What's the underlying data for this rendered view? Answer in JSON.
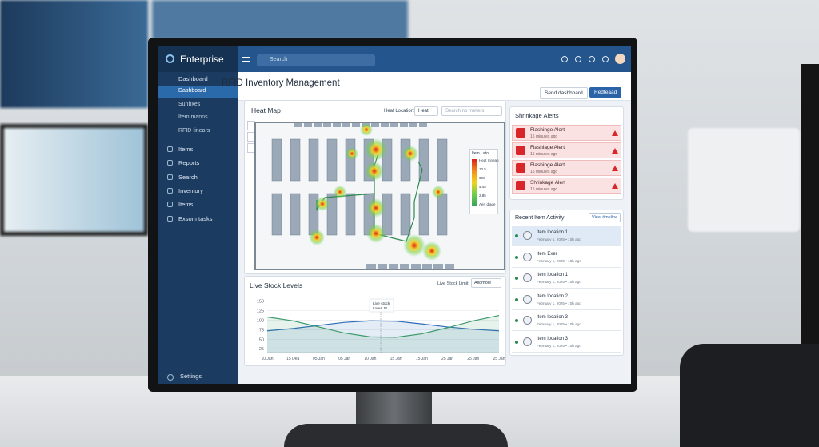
{
  "sidebar": {
    "brand": "Enterprise",
    "nav_main": "Dashboard",
    "nav_sub": [
      "Dashboard",
      "Sunbxes",
      "Item manns",
      "RFID Iinears"
    ],
    "nav": [
      "Items",
      "Reports",
      "Search",
      "Inventory",
      "Items",
      "Exsom tasks"
    ],
    "settings": "Settings"
  },
  "topbar": {
    "search": "Search"
  },
  "header": {
    "title": "RFID Inventory Management",
    "buttons": [
      "Send dashboard",
      "Redfeaad"
    ]
  },
  "heat_map": {
    "title": "Heat Map",
    "location_label": "Heat Location:",
    "location_value": "Heat",
    "search": "Search no mellers",
    "legend": {
      "title": "Item Lato",
      "labels": [
        "Heat mnean",
        "10.5",
        "60S",
        "4.45",
        "2.85",
        "Aert diage"
      ]
    }
  },
  "stock_chart": {
    "type": "line",
    "title": "Live Stock Levels",
    "limit_label": "Live Stock Limit",
    "limit_value": "Allomole",
    "categories": [
      "10 Jan",
      "15 Dea",
      "05 Jan",
      "05 Jan",
      "10 Jan",
      "15 Jan",
      "15 Jan",
      "25 Jan",
      "25 Jan",
      "25 Jan"
    ],
    "series": [
      {
        "color": "#2f6fb5",
        "values": [
          72,
          78,
          86,
          94,
          98,
          97,
          90,
          82,
          76,
          72
        ]
      },
      {
        "color": "#3a9a6a",
        "values": [
          108,
          98,
          82,
          66,
          56,
          55,
          64,
          80,
          98,
          112
        ]
      }
    ],
    "ylim": [
      15,
      155
    ],
    "yticks": [
      25,
      50,
      75,
      100,
      125,
      150
    ],
    "grid": true,
    "tooltip": {
      "title": "Live stock",
      "text": "Lorer: 5t"
    }
  },
  "shrinkage_alerts": {
    "title": "Shrinkage Alerts",
    "items": [
      {
        "title": "Flashinge Alert",
        "time": "15 minutes ago"
      },
      {
        "title": "Flashlage Alert",
        "time": "15 minutes ago"
      },
      {
        "title": "Flashinge Alert",
        "time": "15 minutes ago"
      },
      {
        "title": "Shrinkage Alert",
        "time": "15 minutes ago"
      }
    ]
  },
  "recent_activity": {
    "title": "Recent Item Activity",
    "button": "View timeline",
    "items": [
      {
        "title": "Item location 1",
        "date": "February 5, 2025 • 10h ago"
      },
      {
        "title": "Item Exer",
        "date": "February 1, 2025 • 10h ago"
      },
      {
        "title": "Item location 1",
        "date": "February 1, 2025 • 10h ago"
      },
      {
        "title": "Item location 2",
        "date": "February 1, 2025 • 10h ago"
      },
      {
        "title": "Item location 3",
        "date": "February 1, 2025 • 10h ago"
      },
      {
        "title": "Item location 3",
        "date": "February 1, 2025 • 10h ago"
      }
    ]
  }
}
